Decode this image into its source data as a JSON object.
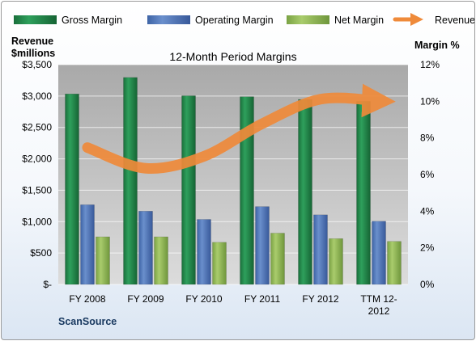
{
  "chart_data": {
    "type": "bar",
    "title": "12-Month Period Margins",
    "left_axis_label_line1": "Revenue",
    "left_axis_label_line2": "$millions",
    "right_axis_label": "Margin %",
    "categories": [
      [
        "FY 2008"
      ],
      [
        "FY 2009"
      ],
      [
        "FY 2010"
      ],
      [
        "FY 2011"
      ],
      [
        "FY 2012"
      ],
      [
        "TTM 12-",
        "2012"
      ]
    ],
    "left_ticks": [
      "$-",
      "$500",
      "$1,000",
      "$1,500",
      "$2,000",
      "$2,500",
      "$3,000",
      "$3,500"
    ],
    "right_ticks": [
      "0%",
      "2%",
      "4%",
      "6%",
      "8%",
      "10%",
      "12%"
    ],
    "ylim_left": [
      0,
      3500
    ],
    "ylim_right": [
      0,
      12
    ],
    "grid": true,
    "legend_position": "top",
    "series": [
      {
        "name": "Gross Margin",
        "axis": "right",
        "kind": "bar",
        "color": "#1f8a4c",
        "values": [
          10.4,
          11.3,
          10.3,
          10.25,
          10.1,
          10.0
        ]
      },
      {
        "name": "Operating Margin",
        "axis": "right",
        "kind": "bar",
        "color": "#4f77b9",
        "values": [
          4.35,
          4.0,
          3.55,
          4.25,
          3.8,
          3.45
        ]
      },
      {
        "name": "Net Margin",
        "axis": "right",
        "kind": "bar",
        "color": "#92b858",
        "values": [
          2.6,
          2.6,
          2.3,
          2.8,
          2.5,
          2.35
        ]
      },
      {
        "name": "Revenues",
        "axis": "left",
        "kind": "line",
        "color": "#ef8a3a",
        "values": [
          2180,
          1850,
          2040,
          2560,
          2950,
          2920
        ]
      }
    ]
  },
  "footer_label": "ScanSource"
}
